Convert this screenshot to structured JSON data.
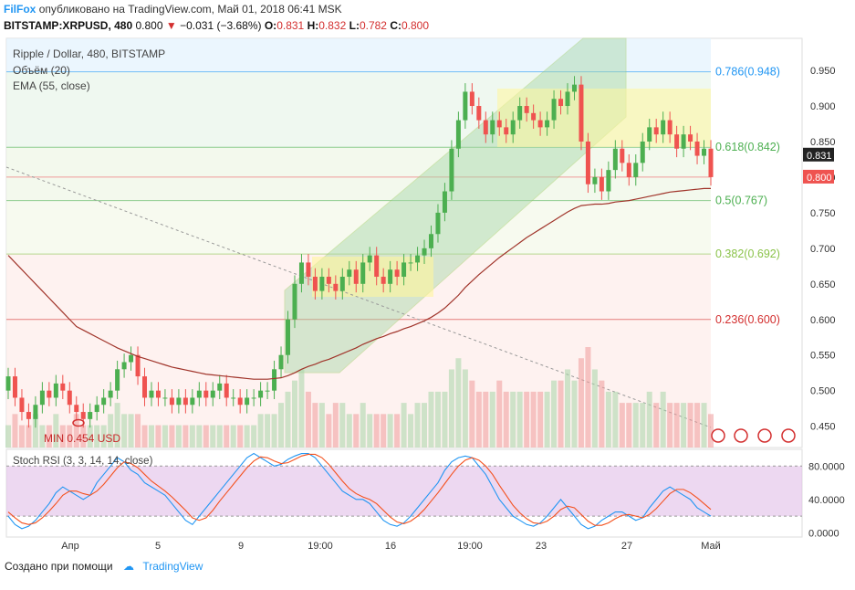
{
  "header": {
    "brand": "FilFox",
    "published": "опубликовано на TradingView.com, Май 01, 2018 06:41 MSK",
    "symbol": "BITSTAMP:XRPUSD, 480",
    "last": "0.800",
    "change": "−0.031 (−3.68%)",
    "ohlc": {
      "o_label": "O:",
      "o": "0.831",
      "h_label": "H:",
      "h": "0.832",
      "l_label": "L:",
      "l": "0.782",
      "c_label": "C:",
      "c": "0.800"
    }
  },
  "legend": {
    "title": "Ripple / Dollar, 480, BITSTAMP",
    "volume": "Объём (20)",
    "ema": "EMA (55, close)",
    "stoch": "Stoch RSI (3, 3, 14, 14, close)"
  },
  "footer": {
    "made_with": "Создано при помощи",
    "brand": "TradingView"
  },
  "min_label": "MIN 0.454 USD",
  "colors": {
    "up": "#26a69a",
    "up_fill": "#4caf50",
    "down": "#ef5350",
    "ema": "#a0342a",
    "k": "#2196f3",
    "d": "#f4511e",
    "fib_786": "#2196f3",
    "fib_618": "#4caf50",
    "fib_5": "#4caf50",
    "fib_382": "#8bc34a",
    "fib_236": "#d32f2f"
  },
  "chart_data": [
    {
      "type": "candlestick",
      "title": "Ripple / Dollar, 480, BITSTAMP",
      "x_ticks": [
        "Апр",
        "5",
        "9",
        "19:00",
        "16",
        "19:00",
        "23",
        "27",
        "Май"
      ],
      "y_ticks": [
        "0.950",
        "0.900",
        "0.850",
        "0.800",
        "0.750",
        "0.700",
        "0.650",
        "0.600",
        "0.550",
        "0.500",
        "0.450"
      ],
      "ylim": [
        0.42,
        0.995
      ],
      "last_price_tags": [
        "0.831",
        "0.800"
      ],
      "fib_levels": [
        {
          "label": "0.786(0.948)",
          "value": 0.948
        },
        {
          "label": "0.618(0.842)",
          "value": 0.842
        },
        {
          "label": "0.5(0.767)",
          "value": 0.767
        },
        {
          "label": "0.382(0.692)",
          "value": 0.692
        },
        {
          "label": "0.236(0.600)",
          "value": 0.6
        }
      ],
      "closes": [
        0.52,
        0.49,
        0.47,
        0.46,
        0.48,
        0.5,
        0.49,
        0.51,
        0.5,
        0.48,
        0.47,
        0.46,
        0.47,
        0.48,
        0.49,
        0.5,
        0.53,
        0.54,
        0.55,
        0.52,
        0.49,
        0.5,
        0.49,
        0.49,
        0.48,
        0.49,
        0.48,
        0.49,
        0.5,
        0.49,
        0.5,
        0.51,
        0.49,
        0.49,
        0.48,
        0.49,
        0.49,
        0.5,
        0.5,
        0.53,
        0.55,
        0.6,
        0.65,
        0.68,
        0.66,
        0.64,
        0.66,
        0.65,
        0.64,
        0.66,
        0.67,
        0.65,
        0.68,
        0.69,
        0.66,
        0.65,
        0.67,
        0.66,
        0.68,
        0.68,
        0.69,
        0.7,
        0.72,
        0.75,
        0.78,
        0.84,
        0.88,
        0.92,
        0.9,
        0.88,
        0.86,
        0.88,
        0.87,
        0.86,
        0.88,
        0.9,
        0.89,
        0.88,
        0.87,
        0.88,
        0.91,
        0.9,
        0.92,
        0.93,
        0.85,
        0.79,
        0.8,
        0.78,
        0.81,
        0.84,
        0.82,
        0.8,
        0.82,
        0.85,
        0.87,
        0.86,
        0.88,
        0.86,
        0.84,
        0.86,
        0.85,
        0.83,
        0.84,
        0.8
      ],
      "ema": [
        0.69,
        0.68,
        0.67,
        0.66,
        0.65,
        0.64,
        0.63,
        0.62,
        0.61,
        0.6,
        0.59,
        0.585,
        0.58,
        0.575,
        0.57,
        0.565,
        0.56,
        0.556,
        0.552,
        0.548,
        0.545,
        0.542,
        0.539,
        0.536,
        0.533,
        0.531,
        0.529,
        0.527,
        0.525,
        0.523,
        0.522,
        0.521,
        0.52,
        0.519,
        0.518,
        0.517,
        0.516,
        0.516,
        0.516,
        0.517,
        0.518,
        0.521,
        0.525,
        0.53,
        0.534,
        0.537,
        0.541,
        0.544,
        0.548,
        0.552,
        0.556,
        0.56,
        0.565,
        0.569,
        0.573,
        0.576,
        0.58,
        0.583,
        0.587,
        0.59,
        0.594,
        0.598,
        0.603,
        0.609,
        0.616,
        0.625,
        0.634,
        0.645,
        0.654,
        0.663,
        0.671,
        0.679,
        0.687,
        0.694,
        0.701,
        0.708,
        0.715,
        0.721,
        0.727,
        0.733,
        0.739,
        0.745,
        0.751,
        0.756,
        0.76,
        0.761,
        0.762,
        0.762,
        0.763,
        0.765,
        0.766,
        0.767,
        0.769,
        0.771,
        0.773,
        0.775,
        0.777,
        0.779,
        0.78,
        0.781,
        0.782,
        0.783,
        0.784,
        0.784
      ],
      "volume": [
        2,
        3,
        2,
        2,
        3,
        2,
        2,
        3,
        2,
        2,
        3,
        2,
        2,
        2,
        2,
        3,
        4,
        3,
        3,
        3,
        2,
        2,
        2,
        2,
        2,
        2,
        2,
        2,
        2,
        2,
        2,
        2,
        2,
        2,
        2,
        2,
        2,
        3,
        3,
        3,
        4,
        5,
        6,
        7,
        5,
        4,
        4,
        3,
        4,
        4,
        3,
        3,
        4,
        3,
        3,
        3,
        3,
        3,
        4,
        3,
        4,
        4,
        5,
        5,
        5,
        7,
        8,
        7,
        6,
        5,
        5,
        5,
        6,
        5,
        5,
        5,
        5,
        5,
        5,
        5,
        6,
        6,
        7,
        6,
        8,
        9,
        7,
        6,
        5,
        5,
        4,
        4,
        4,
        4,
        5,
        4,
        5,
        4,
        4,
        4,
        4,
        4,
        4,
        3
      ]
    },
    {
      "type": "line",
      "title": "Stoch RSI (3, 3, 14, 14, close)",
      "y_ticks": [
        "80.0000",
        "40.0000",
        "0.0000"
      ],
      "ylim": [
        -5,
        100
      ],
      "band": [
        20,
        80
      ],
      "series": [
        {
          "values": [
            20,
            10,
            5,
            8,
            15,
            25,
            35,
            48,
            55,
            50,
            45,
            40,
            45,
            60,
            70,
            80,
            90,
            85,
            75,
            70,
            60,
            55,
            50,
            45,
            35,
            25,
            15,
            10,
            20,
            30,
            40,
            50,
            60,
            70,
            80,
            90,
            95,
            90,
            85,
            80,
            82,
            88,
            92,
            95,
            95,
            90,
            80,
            70,
            60,
            50,
            45,
            40,
            40,
            35,
            25,
            15,
            10,
            8,
            12,
            20,
            30,
            40,
            50,
            60,
            75,
            85,
            90,
            92,
            90,
            80,
            70,
            55,
            40,
            30,
            20,
            15,
            10,
            8,
            12,
            20,
            30,
            40,
            30,
            20,
            10,
            5,
            8,
            15,
            20,
            25,
            25,
            20,
            15,
            18,
            30,
            40,
            50,
            55,
            50,
            45,
            40,
            30,
            25,
            20
          ]
        },
        {
          "values": [
            25,
            18,
            12,
            10,
            12,
            18,
            26,
            35,
            45,
            50,
            50,
            47,
            45,
            50,
            58,
            68,
            78,
            85,
            83,
            78,
            70,
            62,
            56,
            50,
            43,
            35,
            27,
            18,
            15,
            18,
            27,
            38,
            48,
            58,
            68,
            78,
            86,
            91,
            90,
            86,
            83,
            84,
            88,
            92,
            94,
            94,
            90,
            82,
            72,
            62,
            53,
            47,
            43,
            40,
            35,
            27,
            19,
            13,
            11,
            14,
            20,
            28,
            38,
            48,
            59,
            70,
            80,
            87,
            90,
            87,
            80,
            70,
            57,
            45,
            33,
            24,
            17,
            12,
            11,
            14,
            20,
            28,
            32,
            30,
            22,
            14,
            9,
            9,
            12,
            17,
            21,
            22,
            20,
            18,
            22,
            29,
            38,
            47,
            52,
            52,
            48,
            42,
            35,
            28
          ]
        }
      ]
    }
  ]
}
